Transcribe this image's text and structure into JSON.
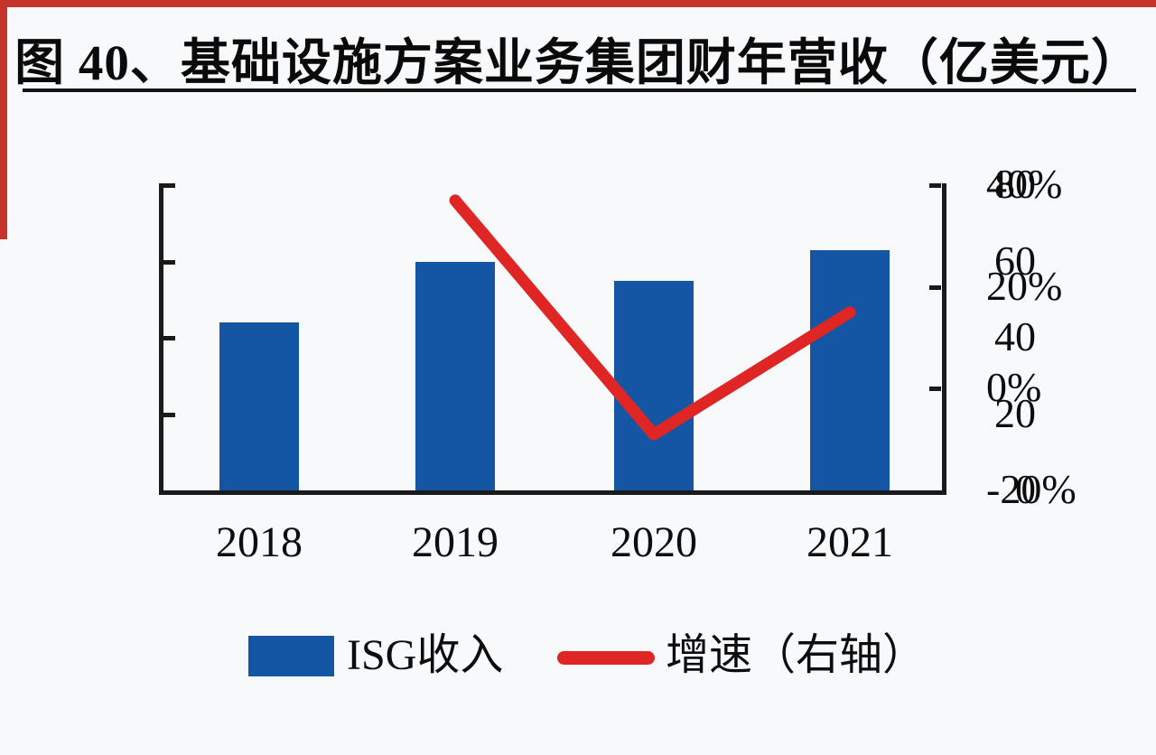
{
  "figure": {
    "title": "图 40、基础设施方案业务集团财年营收（亿美元）"
  },
  "colors": {
    "bar_blue": "#1456a3",
    "line_red": "#e02525",
    "border_red": "#c5342c",
    "axis_black": "#1a1a1a"
  },
  "legend": {
    "bar_label": "ISG收入",
    "line_label": "增速（右轴）"
  },
  "chart_data": {
    "type": "bar+line",
    "title": "图 40、基础设施方案业务集团财年营收（亿美元）",
    "categories": [
      "2018",
      "2019",
      "2020",
      "2021"
    ],
    "series": [
      {
        "name": "ISG收入",
        "type": "bar",
        "axis": "left",
        "color": "#1456a3",
        "values": [
          44,
          60,
          55,
          63
        ]
      },
      {
        "name": "增速（右轴）",
        "type": "line",
        "axis": "right",
        "color": "#e02525",
        "unit": "%",
        "values": [
          null,
          37,
          -9,
          15
        ]
      }
    ],
    "left_axis": {
      "min": 0,
      "max": 80,
      "tick_values": [
        80,
        60,
        40,
        20,
        0
      ],
      "tick_labels": [
        "80",
        "60",
        "40",
        "20",
        "0"
      ]
    },
    "right_axis": {
      "min": -20,
      "max": 40,
      "tick_values": [
        40,
        20,
        0,
        -20
      ],
      "tick_labels": [
        "40%",
        "20%",
        "0%",
        "-20%"
      ]
    },
    "grid": false,
    "legend_position": "bottom",
    "legend": [
      "ISG收入",
      "增速（右轴）"
    ]
  }
}
